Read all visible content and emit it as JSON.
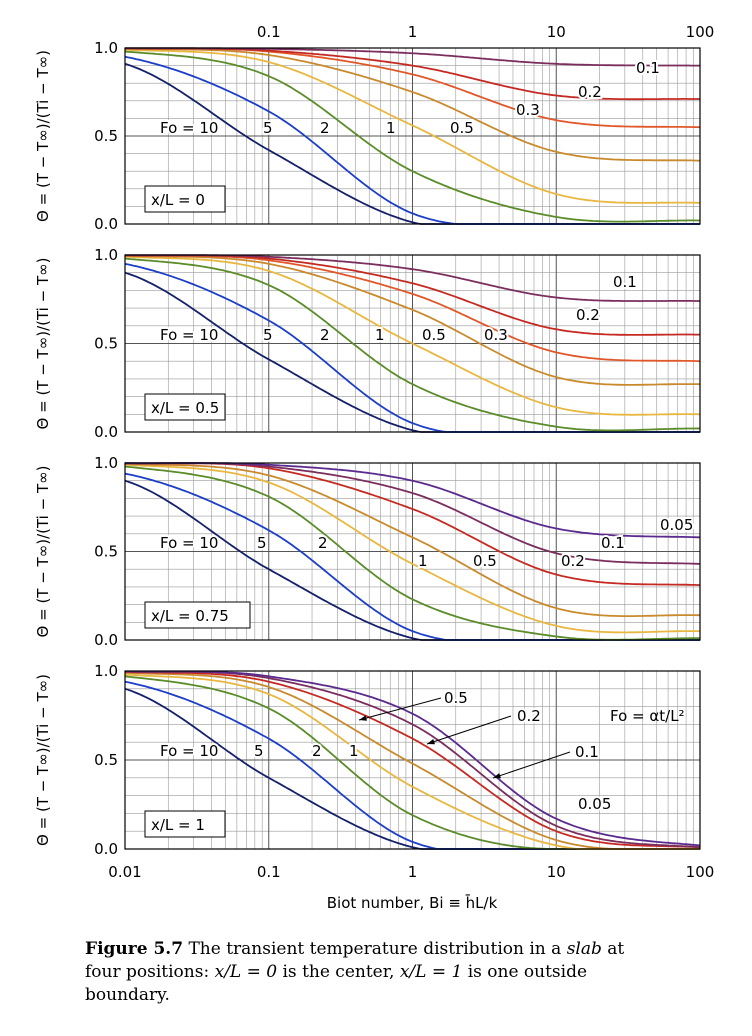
{
  "caption": {
    "label": "Figure 5.7",
    "text_1": "The transient temperature distribution in a",
    "text_em": "slab",
    "text_2": "at four positions:",
    "pos_a": "x/L = 0",
    "text_3": "is the center,",
    "pos_b": "x/L = 1",
    "text_4": "is one outside boundary."
  },
  "chart_data": {
    "type": "line",
    "xscale": "log",
    "xlim": [
      0.01,
      100
    ],
    "xticks": [
      "0.01",
      "0.1",
      "1",
      "10",
      "100"
    ],
    "xlabel": "Biot number, Bi ≡ h̄L/k",
    "ylabel": "Θ = (T − T∞)/(Ti − T∞)",
    "ylim": [
      0,
      1
    ],
    "yticks": [
      "0.0",
      "0.5",
      "1.0"
    ],
    "grid": true,
    "formula_note": "Fo = αt/L²",
    "series_colors": {
      "10": "#14206a",
      "5": "#1c3ec8",
      "2": "#5b8c2a",
      "1": "#e8b740",
      "0.5": "#c98a2e",
      "0.3": "#e0582a",
      "0.2": "#c52a22",
      "0.1": "#7b2e5e",
      "0.05": "#5a2a8e"
    },
    "panels": [
      {
        "position": "x/L = 0",
        "x_sample": [
          0.01,
          0.1,
          1,
          10,
          100
        ],
        "series": [
          {
            "name": "10",
            "values": [
              0.91,
              0.42,
              0.01,
              0.0,
              0.0
            ]
          },
          {
            "name": "5",
            "values": [
              0.95,
              0.64,
              0.06,
              0.0,
              0.0
            ]
          },
          {
            "name": "2",
            "values": [
              0.98,
              0.84,
              0.3,
              0.04,
              0.02
            ]
          },
          {
            "name": "1",
            "values": [
              0.99,
              0.92,
              0.56,
              0.17,
              0.12
            ]
          },
          {
            "name": "0.5",
            "values": [
              0.995,
              0.96,
              0.75,
              0.41,
              0.36
            ]
          },
          {
            "name": "0.3",
            "values": [
              0.997,
              0.98,
              0.85,
              0.59,
              0.55
            ]
          },
          {
            "name": "0.2",
            "values": [
              0.998,
              0.985,
              0.9,
              0.73,
              0.71
            ]
          },
          {
            "name": "0.1",
            "values": [
              0.999,
              0.995,
              0.97,
              0.91,
              0.9
            ]
          }
        ]
      },
      {
        "position": "x/L = 0.5",
        "x_sample": [
          0.01,
          0.1,
          1,
          10,
          100
        ],
        "series": [
          {
            "name": "10",
            "values": [
              0.9,
              0.41,
              0.01,
              0.0,
              0.0
            ]
          },
          {
            "name": "5",
            "values": [
              0.95,
              0.63,
              0.05,
              0.0,
              0.0
            ]
          },
          {
            "name": "2",
            "values": [
              0.98,
              0.83,
              0.27,
              0.03,
              0.02
            ]
          },
          {
            "name": "1",
            "values": [
              0.99,
              0.91,
              0.5,
              0.14,
              0.1
            ]
          },
          {
            "name": "0.5",
            "values": [
              0.995,
              0.95,
              0.69,
              0.31,
              0.27
            ]
          },
          {
            "name": "0.3",
            "values": [
              0.997,
              0.97,
              0.78,
              0.45,
              0.4
            ]
          },
          {
            "name": "0.2",
            "values": [
              0.998,
              0.98,
              0.84,
              0.58,
              0.55
            ]
          },
          {
            "name": "0.1",
            "values": [
              0.999,
              0.99,
              0.92,
              0.76,
              0.74
            ]
          }
        ]
      },
      {
        "position": "x/L = 0.75",
        "x_sample": [
          0.01,
          0.1,
          1,
          10,
          100
        ],
        "series": [
          {
            "name": "10",
            "values": [
              0.9,
              0.4,
              0.01,
              0.0,
              0.0
            ]
          },
          {
            "name": "5",
            "values": [
              0.94,
              0.62,
              0.05,
              0.0,
              0.0
            ]
          },
          {
            "name": "2",
            "values": [
              0.98,
              0.81,
              0.23,
              0.02,
              0.01
            ]
          },
          {
            "name": "1",
            "values": [
              0.99,
              0.89,
              0.43,
              0.08,
              0.05
            ]
          },
          {
            "name": "0.5",
            "values": [
              0.995,
              0.93,
              0.58,
              0.18,
              0.14
            ]
          },
          {
            "name": "0.2",
            "values": [
              0.998,
              0.97,
              0.74,
              0.37,
              0.31
            ]
          },
          {
            "name": "0.1",
            "values": [
              0.999,
              0.98,
              0.83,
              0.49,
              0.43
            ]
          },
          {
            "name": "0.05",
            "values": [
              0.999,
              0.99,
              0.9,
              0.63,
              0.58
            ]
          }
        ]
      },
      {
        "position": "x/L = 1",
        "x_sample": [
          0.01,
          0.1,
          1,
          10,
          100
        ],
        "series": [
          {
            "name": "10",
            "values": [
              0.9,
              0.4,
              0.01,
              0.0,
              0.0
            ]
          },
          {
            "name": "5",
            "values": [
              0.94,
              0.62,
              0.04,
              0.0,
              0.0
            ]
          },
          {
            "name": "2",
            "values": [
              0.97,
              0.79,
              0.19,
              0.0,
              0.0
            ]
          },
          {
            "name": "1",
            "values": [
              0.98,
              0.87,
              0.35,
              0.02,
              0.0
            ]
          },
          {
            "name": "0.5",
            "values": [
              0.99,
              0.91,
              0.48,
              0.05,
              0.0
            ]
          },
          {
            "name": "0.2",
            "values": [
              0.995,
              0.94,
              0.62,
              0.1,
              0.01
            ]
          },
          {
            "name": "0.1",
            "values": [
              0.997,
              0.96,
              0.7,
              0.13,
              0.01
            ]
          },
          {
            "name": "0.05",
            "values": [
              0.998,
              0.97,
              0.76,
              0.17,
              0.02
            ]
          }
        ]
      }
    ],
    "curve_labels": [
      [
        "Fo = 10",
        "5",
        "2",
        "1",
        "0.5",
        "0.3",
        "0.2",
        "0.1"
      ],
      [
        "Fo = 10",
        "5",
        "2",
        "1",
        "0.5",
        "0.3",
        "0.2",
        "0.1"
      ],
      [
        "Fo = 10",
        "5",
        "2",
        "1",
        "0.5",
        "0.2",
        "0.1",
        "0.05"
      ],
      [
        "Fo = 10",
        "5",
        "2",
        "1",
        "0.5",
        "0.2",
        "0.1",
        "0.05"
      ]
    ]
  }
}
